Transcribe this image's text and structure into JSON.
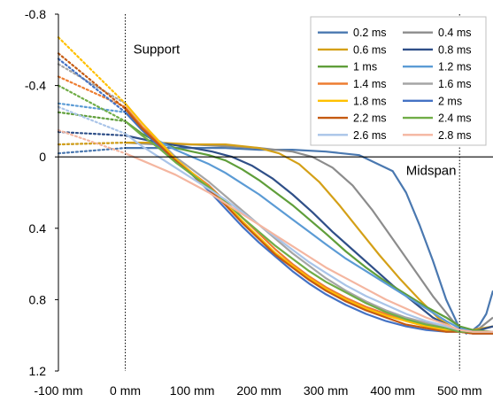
{
  "chart_data": {
    "type": "line",
    "title": "",
    "xlabel": "",
    "ylabel": "",
    "xlim": [
      -100,
      550
    ],
    "ylim": [
      -0.8,
      1.2
    ],
    "y_inverted": true,
    "grid": false,
    "legend_position": "top-right",
    "legend_columns": 2,
    "x_ticks": [
      {
        "value": -100,
        "label": "-100 mm"
      },
      {
        "value": 0,
        "label": "0 mm"
      },
      {
        "value": 100,
        "label": "100 mm"
      },
      {
        "value": 200,
        "label": "200 mm"
      },
      {
        "value": 300,
        "label": "300 mm"
      },
      {
        "value": 400,
        "label": "400 mm"
      },
      {
        "value": 500,
        "label": "500 mm"
      }
    ],
    "y_ticks": [
      {
        "value": -0.8,
        "label": "-0.8"
      },
      {
        "value": -0.4,
        "label": "-0.4"
      },
      {
        "value": 0,
        "label": "0"
      },
      {
        "value": 0.4,
        "label": "0.4"
      },
      {
        "value": 0.8,
        "label": "0.8"
      },
      {
        "value": 1.2,
        "label": "1.2"
      }
    ],
    "reference_lines_x": [
      0,
      500
    ],
    "annotations": [
      {
        "text": "Support",
        "x": 12,
        "y": -0.58
      },
      {
        "text": "Midspan",
        "x": 420,
        "y": 0.1
      }
    ],
    "note_dotted_segment": "Each series is drawn dotted from x=-100 to x=0 and solid from x=0 onward.",
    "series": [
      {
        "name": "0.2 ms",
        "color": "#4a78b0",
        "x": [
          -100,
          0,
          50,
          100,
          150,
          200,
          250,
          300,
          350,
          400,
          420,
          440,
          460,
          480,
          500,
          510,
          520,
          530,
          540,
          550
        ],
        "y": [
          -0.02,
          -0.05,
          -0.05,
          -0.05,
          -0.05,
          -0.04,
          -0.04,
          -0.03,
          -0.01,
          0.08,
          0.2,
          0.38,
          0.58,
          0.8,
          0.96,
          0.99,
          0.97,
          0.94,
          0.88,
          0.75
        ]
      },
      {
        "name": "0.4 ms",
        "color": "#8c8c8c",
        "x": [
          -100,
          0,
          50,
          100,
          150,
          200,
          250,
          280,
          310,
          340,
          370,
          400,
          430,
          460,
          490,
          510,
          530,
          550
        ],
        "y": [
          -0.07,
          -0.08,
          -0.07,
          -0.07,
          -0.06,
          -0.05,
          -0.03,
          0.0,
          0.06,
          0.16,
          0.3,
          0.46,
          0.62,
          0.78,
          0.92,
          0.98,
          0.96,
          0.9
        ]
      },
      {
        "name": "0.6 ms",
        "color": "#d4a017",
        "x": [
          -100,
          0,
          50,
          100,
          150,
          200,
          230,
          260,
          290,
          320,
          350,
          380,
          410,
          440,
          470,
          500,
          520,
          550
        ],
        "y": [
          -0.07,
          -0.08,
          -0.08,
          -0.07,
          -0.07,
          -0.05,
          -0.02,
          0.04,
          0.14,
          0.27,
          0.41,
          0.55,
          0.68,
          0.8,
          0.91,
          0.98,
          0.97,
          0.95
        ]
      },
      {
        "name": "0.8 ms",
        "color": "#2f4f88",
        "x": [
          -100,
          0,
          50,
          100,
          130,
          160,
          190,
          220,
          250,
          280,
          310,
          340,
          370,
          400,
          430,
          460,
          490,
          510,
          530,
          550
        ],
        "y": [
          -0.14,
          -0.12,
          -0.08,
          -0.05,
          -0.03,
          0.0,
          0.05,
          0.12,
          0.21,
          0.31,
          0.42,
          0.52,
          0.62,
          0.72,
          0.81,
          0.9,
          0.96,
          0.98,
          0.97,
          0.95
        ]
      },
      {
        "name": "1 ms",
        "color": "#5f9e3a",
        "x": [
          -100,
          0,
          25,
          50,
          75,
          100,
          125,
          150,
          175,
          200,
          225,
          250,
          275,
          300,
          330,
          360,
          390,
          420,
          450,
          480,
          500,
          520,
          550
        ],
        "y": [
          -0.25,
          -0.2,
          -0.13,
          -0.08,
          -0.05,
          -0.03,
          -0.01,
          0.02,
          0.07,
          0.13,
          0.2,
          0.27,
          0.35,
          0.43,
          0.53,
          0.62,
          0.7,
          0.77,
          0.84,
          0.9,
          0.95,
          0.97,
          0.98
        ]
      },
      {
        "name": "1.2 ms",
        "color": "#5b9bd5",
        "x": [
          -100,
          0,
          25,
          50,
          75,
          100,
          125,
          150,
          175,
          200,
          225,
          250,
          275,
          300,
          330,
          360,
          390,
          420,
          450,
          480,
          500,
          520,
          550
        ],
        "y": [
          -0.3,
          -0.25,
          -0.16,
          -0.09,
          -0.04,
          0.0,
          0.04,
          0.09,
          0.15,
          0.21,
          0.28,
          0.35,
          0.42,
          0.49,
          0.57,
          0.64,
          0.71,
          0.78,
          0.85,
          0.92,
          0.96,
          0.98,
          0.98
        ]
      },
      {
        "name": "1.4 ms",
        "color": "#ed7d31",
        "x": [
          -100,
          0,
          25,
          50,
          75,
          100,
          125,
          150,
          175,
          200,
          225,
          250,
          275,
          300,
          330,
          360,
          390,
          420,
          450,
          480,
          500,
          520,
          550
        ],
        "y": [
          -0.45,
          -0.28,
          -0.17,
          -0.08,
          0.01,
          0.09,
          0.16,
          0.25,
          0.34,
          0.43,
          0.52,
          0.6,
          0.67,
          0.73,
          0.79,
          0.84,
          0.88,
          0.92,
          0.95,
          0.97,
          0.98,
          0.99,
          0.99
        ]
      },
      {
        "name": "1.6 ms",
        "color": "#a5a5a5",
        "x": [
          -100,
          0,
          25,
          50,
          75,
          100,
          125,
          150,
          175,
          200,
          225,
          250,
          275,
          300,
          330,
          360,
          390,
          420,
          450,
          480,
          500,
          520,
          550
        ],
        "y": [
          -0.52,
          -0.3,
          -0.19,
          -0.09,
          0.0,
          0.07,
          0.14,
          0.22,
          0.3,
          0.38,
          0.46,
          0.54,
          0.61,
          0.68,
          0.75,
          0.81,
          0.86,
          0.9,
          0.93,
          0.96,
          0.98,
          0.98,
          0.99
        ]
      },
      {
        "name": "1.8 ms",
        "color": "#ffc000",
        "x": [
          -100,
          0,
          25,
          50,
          75,
          100,
          125,
          150,
          175,
          200,
          225,
          250,
          275,
          300,
          330,
          360,
          390,
          420,
          450,
          480,
          500,
          520,
          550
        ],
        "y": [
          -0.67,
          -0.3,
          -0.19,
          -0.09,
          0.01,
          0.09,
          0.17,
          0.26,
          0.36,
          0.45,
          0.54,
          0.61,
          0.68,
          0.74,
          0.8,
          0.85,
          0.89,
          0.92,
          0.95,
          0.97,
          0.98,
          0.98,
          0.99
        ]
      },
      {
        "name": "2 ms",
        "color": "#4472c4",
        "x": [
          -100,
          0,
          25,
          50,
          75,
          100,
          125,
          150,
          175,
          200,
          225,
          250,
          275,
          300,
          330,
          360,
          390,
          420,
          450,
          480,
          500,
          520,
          550
        ],
        "y": [
          -0.55,
          -0.25,
          -0.15,
          -0.06,
          0.02,
          0.1,
          0.19,
          0.29,
          0.39,
          0.48,
          0.56,
          0.64,
          0.71,
          0.77,
          0.83,
          0.88,
          0.92,
          0.95,
          0.97,
          0.98,
          0.98,
          0.99,
          0.99
        ]
      },
      {
        "name": "2.2 ms",
        "color": "#c55a11",
        "x": [
          -100,
          0,
          25,
          50,
          75,
          100,
          125,
          150,
          175,
          200,
          225,
          250,
          275,
          300,
          330,
          360,
          390,
          420,
          450,
          480,
          500,
          520,
          550
        ],
        "y": [
          -0.58,
          -0.27,
          -0.16,
          -0.07,
          0.02,
          0.1,
          0.18,
          0.27,
          0.37,
          0.46,
          0.55,
          0.62,
          0.69,
          0.75,
          0.81,
          0.86,
          0.9,
          0.94,
          0.96,
          0.98,
          0.98,
          0.99,
          0.99
        ]
      },
      {
        "name": "2.4 ms",
        "color": "#70ad47",
        "x": [
          -100,
          0,
          25,
          50,
          75,
          100,
          125,
          150,
          175,
          200,
          225,
          250,
          275,
          300,
          330,
          360,
          390,
          420,
          450,
          480,
          500,
          520,
          550
        ],
        "y": [
          -0.4,
          -0.2,
          -0.12,
          -0.05,
          0.03,
          0.1,
          0.17,
          0.25,
          0.34,
          0.42,
          0.5,
          0.57,
          0.64,
          0.7,
          0.76,
          0.82,
          0.87,
          0.91,
          0.94,
          0.96,
          0.98,
          0.98,
          0.98
        ]
      },
      {
        "name": "2.6 ms",
        "color": "#a9c4e8",
        "x": [
          -100,
          0,
          25,
          50,
          75,
          100,
          125,
          150,
          175,
          200,
          225,
          250,
          275,
          300,
          330,
          360,
          390,
          420,
          450,
          480,
          500,
          520,
          550
        ],
        "y": [
          -0.28,
          -0.13,
          -0.06,
          0.0,
          0.06,
          0.12,
          0.18,
          0.24,
          0.31,
          0.38,
          0.45,
          0.52,
          0.59,
          0.65,
          0.72,
          0.78,
          0.83,
          0.88,
          0.92,
          0.95,
          0.97,
          0.98,
          0.98
        ]
      },
      {
        "name": "2.8 ms",
        "color": "#f4b6a0",
        "x": [
          -100,
          0,
          25,
          50,
          75,
          100,
          125,
          150,
          175,
          200,
          225,
          250,
          275,
          300,
          330,
          360,
          390,
          420,
          450,
          480,
          500,
          520,
          550
        ],
        "y": [
          -0.15,
          -0.02,
          0.02,
          0.06,
          0.1,
          0.15,
          0.2,
          0.26,
          0.32,
          0.38,
          0.44,
          0.5,
          0.56,
          0.62,
          0.68,
          0.74,
          0.8,
          0.85,
          0.9,
          0.94,
          0.97,
          0.98,
          0.98
        ]
      }
    ]
  }
}
